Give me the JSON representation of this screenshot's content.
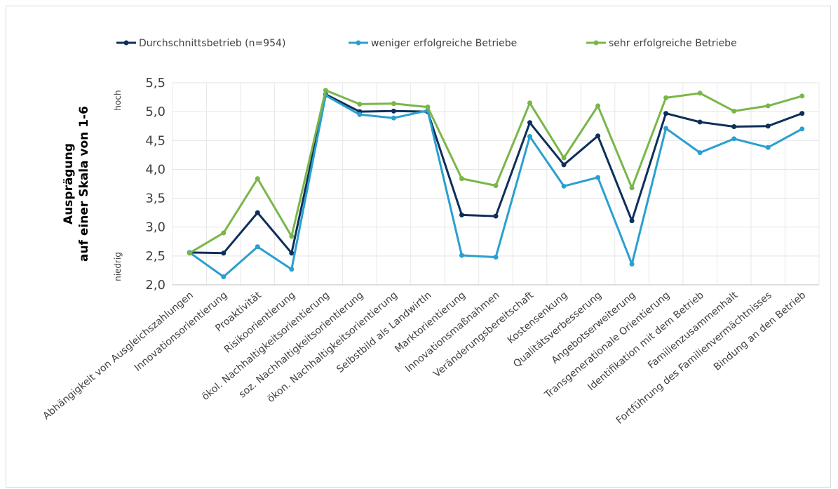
{
  "chart_data": {
    "type": "line",
    "ylabel_line1": "Ausprägung",
    "ylabel_line2": "auf einer Skala von 1-6",
    "ylabel_high": "hoch",
    "ylabel_low": "niedrig",
    "ylim": [
      2.0,
      5.5
    ],
    "yticks": [
      2.0,
      2.5,
      3.0,
      3.5,
      4.0,
      4.5,
      5.0,
      5.5
    ],
    "ytick_labels": [
      "2,0",
      "2,5",
      "3,0",
      "3,5",
      "4,0",
      "4,5",
      "5,0",
      "5,5"
    ],
    "grid": true,
    "legend_position": "top",
    "categories": [
      "Abhängigkeit von Ausgleichszahlungen",
      "Innovationsorientierung",
      "Proaktivität",
      "Risikoorientierung",
      "ökol. Nachhaltigkeitsorientierung",
      "soz. Nachhaltigkeitsorientierung",
      "ökon. Nachhaltigkeitsorientierung",
      "Selbstbild als LandwirtIn",
      "Marktorientierung",
      "Innovationsmaßnahmen",
      "Veränderungsbereitschaft",
      "Kostensenkung",
      "Qualitätsverbesserung",
      "Angebotserweiterung",
      "Transgenerationale Orientierung",
      "Identifikation mit dem Betrieb",
      "Familienzusammenhalt",
      "Fortführung des Familienvermächtnisses",
      "Bindung an den Betrieb"
    ],
    "series": [
      {
        "name": "Durchschnittsbetrieb (n=954)",
        "color": "#0d2f5a",
        "values": [
          2.56,
          2.55,
          3.25,
          2.55,
          5.3,
          5.0,
          5.01,
          5.0,
          3.21,
          3.19,
          4.81,
          4.08,
          4.58,
          3.11,
          4.97,
          4.82,
          4.74,
          4.75,
          4.97
        ]
      },
      {
        "name": "weniger erfolgreiche Betriebe",
        "color": "#2a9fd0",
        "values": [
          2.56,
          2.14,
          2.66,
          2.27,
          5.28,
          4.95,
          4.89,
          5.02,
          2.51,
          2.48,
          4.57,
          3.71,
          3.86,
          2.36,
          4.71,
          4.29,
          4.53,
          4.38,
          4.7
        ]
      },
      {
        "name": "sehr erfolgreiche Betriebe",
        "color": "#7ab648",
        "values": [
          2.55,
          2.9,
          3.84,
          2.84,
          5.37,
          5.13,
          5.14,
          5.08,
          3.84,
          3.72,
          5.15,
          4.2,
          5.1,
          3.68,
          5.24,
          5.32,
          5.01,
          5.1,
          5.27
        ]
      }
    ]
  }
}
